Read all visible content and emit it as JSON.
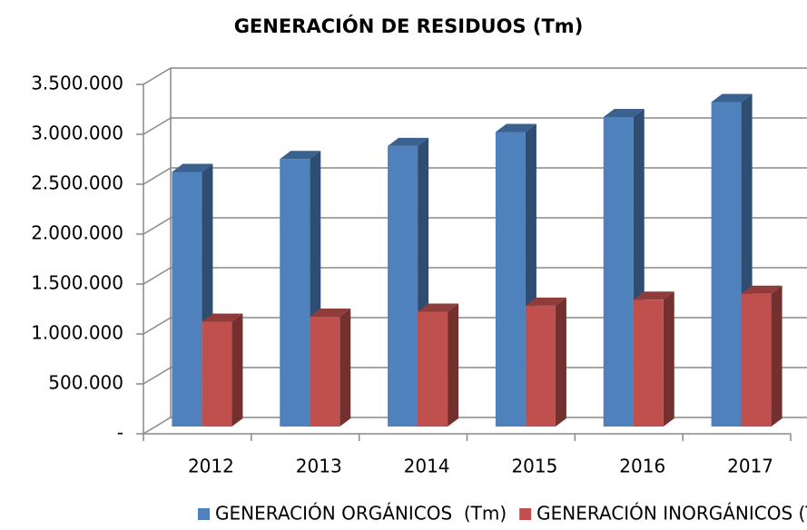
{
  "chart_data": {
    "type": "bar3d",
    "title": "GENERACIÓN DE RESIDUOS (Tm)",
    "categories": [
      "2012",
      "2013",
      "2014",
      "2015",
      "2016",
      "2017"
    ],
    "series": [
      {
        "name": "GENERACIÓN ORGÁNICOS  (Tm)",
        "color": "#4f81bd",
        "values": [
          2550000,
          2680000,
          2810000,
          2950000,
          3100000,
          3250000
        ]
      },
      {
        "name": "GENERACIÓN INORGÁNICOS (Tm)",
        "color": "#c0504d",
        "values": [
          1050000,
          1100000,
          1150000,
          1210000,
          1270000,
          1330000
        ]
      }
    ],
    "ylim": [
      0,
      3500000
    ],
    "yticks": [
      {
        "value": 0,
        "label": "-"
      },
      {
        "value": 500000,
        "label": "500.000"
      },
      {
        "value": 1000000,
        "label": "1.000.000"
      },
      {
        "value": 1500000,
        "label": "1.500.000"
      },
      {
        "value": 2000000,
        "label": "2.000.000"
      },
      {
        "value": 2500000,
        "label": "2.500.000"
      },
      {
        "value": 3000000,
        "label": "3.000.000"
      },
      {
        "value": 3500000,
        "label": "3.500.000"
      }
    ],
    "grid": true,
    "legend": "bottom"
  }
}
